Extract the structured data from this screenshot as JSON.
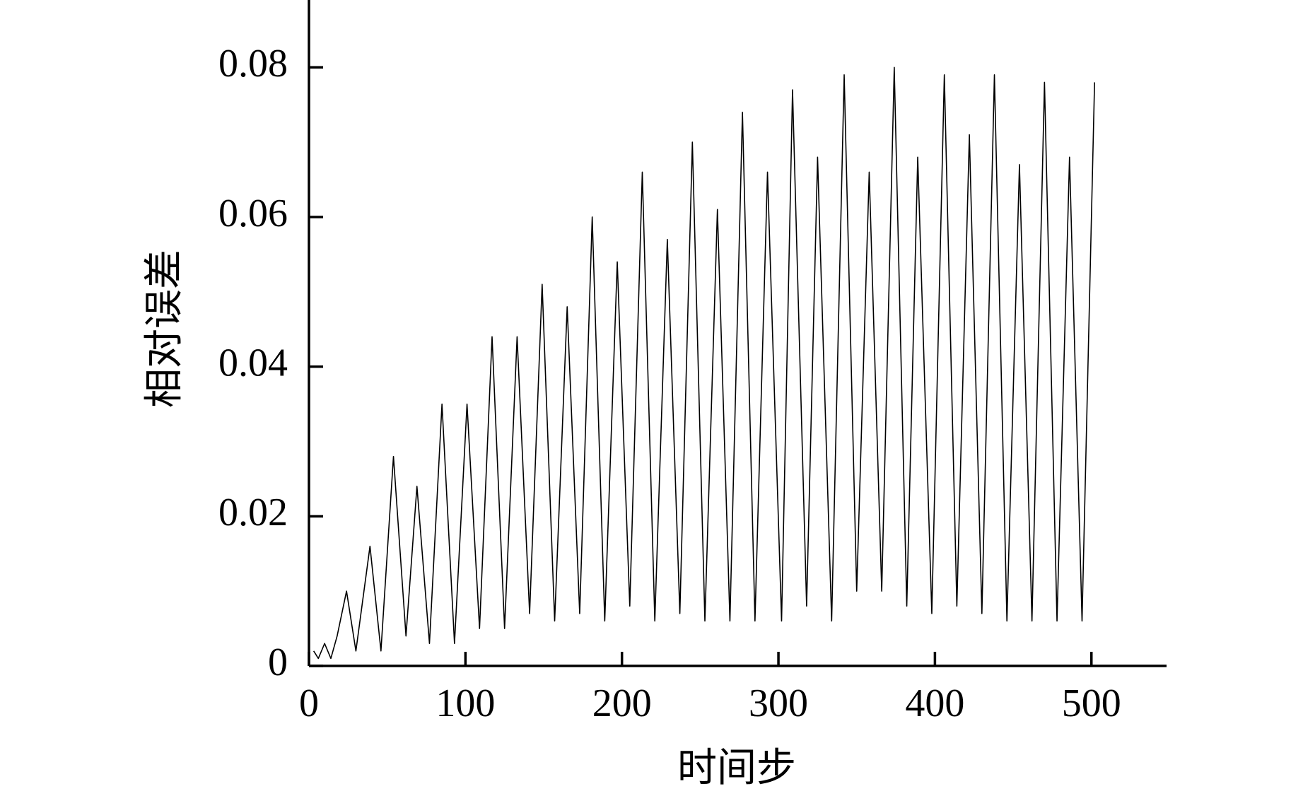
{
  "chart_data": {
    "type": "line",
    "xlabel": "时间步",
    "ylabel": "相对误差",
    "x": [
      3,
      6,
      10,
      14,
      18,
      24,
      30,
      39,
      46,
      54,
      62,
      69,
      77,
      85,
      93,
      101,
      109,
      117,
      125,
      133,
      141,
      149,
      157,
      165,
      173,
      181,
      189,
      197,
      205,
      213,
      221,
      229,
      237,
      245,
      253,
      261,
      269,
      277,
      285,
      293,
      302,
      309,
      318,
      325,
      334,
      342,
      350,
      358,
      366,
      374,
      382,
      389,
      398,
      406,
      414,
      422,
      430,
      438,
      446,
      454,
      462,
      470,
      478,
      486,
      494,
      502
    ],
    "series": [
      {
        "color": "#000000",
        "values": [
          0.002,
          0.001,
          0.003,
          0.001,
          0.004,
          0.01,
          0.002,
          0.016,
          0.002,
          0.028,
          0.004,
          0.024,
          0.003,
          0.035,
          0.003,
          0.035,
          0.005,
          0.044,
          0.005,
          0.044,
          0.007,
          0.051,
          0.006,
          0.048,
          0.007,
          0.06,
          0.006,
          0.054,
          0.008,
          0.066,
          0.006,
          0.057,
          0.007,
          0.07,
          0.006,
          0.061,
          0.006,
          0.074,
          0.006,
          0.066,
          0.006,
          0.077,
          0.008,
          0.068,
          0.006,
          0.079,
          0.01,
          0.066,
          0.01,
          0.08,
          0.008,
          0.068,
          0.007,
          0.079,
          0.008,
          0.071,
          0.007,
          0.079,
          0.006,
          0.067,
          0.006,
          0.078,
          0.006,
          0.068,
          0.006,
          0.078
        ]
      }
    ],
    "xlim": [
      0,
      548
    ],
    "ylim": [
      0,
      0.089
    ],
    "xticks": [
      0,
      100,
      200,
      300,
      400,
      500
    ],
    "yticks": [
      0,
      0.02,
      0.04,
      0.06,
      0.08
    ]
  }
}
